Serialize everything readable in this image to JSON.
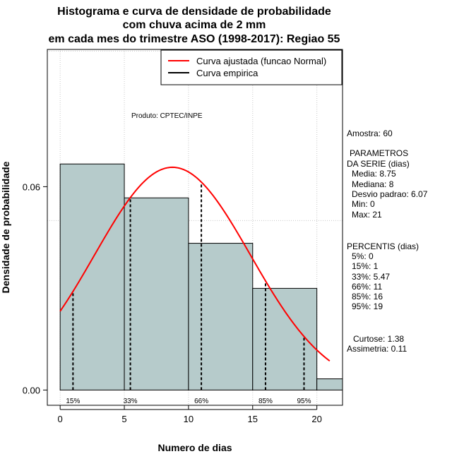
{
  "chart_data": {
    "type": "bar",
    "title": [
      "Histograma e curva de densidade de probabilidade",
      "com chuva acima de 2 mm",
      "em cada mes do trimestre ASO (1998-2017): Regiao 55"
    ],
    "xlabel": "Numero de dias",
    "ylabel": "Densidade de probabilidade",
    "xlim": [
      -1,
      22
    ],
    "ylim": [
      -0.0045,
      0.1005
    ],
    "xticks": [
      0,
      5,
      10,
      15,
      20
    ],
    "xtick_labels": [
      "0",
      "5",
      "10",
      "15",
      "20"
    ],
    "yticks": [
      0.0,
      0.06
    ],
    "ytick_labels": [
      "0.00",
      "0.06"
    ],
    "xgrid": [
      0,
      5,
      10,
      15,
      20
    ],
    "ygrid": [
      0.05,
      0.1
    ],
    "bins": [
      {
        "x0": 0,
        "x1": 5,
        "density": 0.0667
      },
      {
        "x0": 5,
        "x1": 10,
        "density": 0.0567
      },
      {
        "x0": 10,
        "x1": 15,
        "density": 0.0433
      },
      {
        "x0": 15,
        "x1": 20,
        "density": 0.03
      },
      {
        "x0": 20,
        "x1": 22,
        "density": 0.0033
      }
    ],
    "normal_curve": {
      "mean": 8.75,
      "sd": 6.07,
      "xmin": 0,
      "xmax": 21,
      "color": "#ff0000"
    },
    "percentile_lines": [
      {
        "label": "15%",
        "x": 1
      },
      {
        "label": "33%",
        "x": 5.47
      },
      {
        "label": "66%",
        "x": 11
      },
      {
        "label": "85%",
        "x": 16
      },
      {
        "label": "95%",
        "x": 19
      }
    ],
    "legend": [
      {
        "label": "Curva ajustada (funcao Normal)",
        "color": "#ff0000"
      },
      {
        "label": "Curva empirica",
        "color": "#000000"
      }
    ],
    "bar_color": "#b6cbcb",
    "annotation": "Produto: CPTEC/INPE"
  },
  "stats": {
    "amostra": "Amostra: 60",
    "param_title_1": "PARAMETROS",
    "param_title_2": "DA SERIE (dias)",
    "media": "Media: 8.75",
    "mediana": "Mediana: 8",
    "desvio": "Desvio padrao: 6.07",
    "min": "Min: 0",
    "max": "Max: 21",
    "percentis_title": "PERCENTIS (dias)",
    "p5": "5%: 0",
    "p15": "15%: 1",
    "p33": "33%: 5.47",
    "p66": "66%: 11",
    "p85": "85%: 16",
    "p95": "95%: 19",
    "curtose": "Curtose: 1.38",
    "assimetria": "Assimetria: 0.11"
  }
}
